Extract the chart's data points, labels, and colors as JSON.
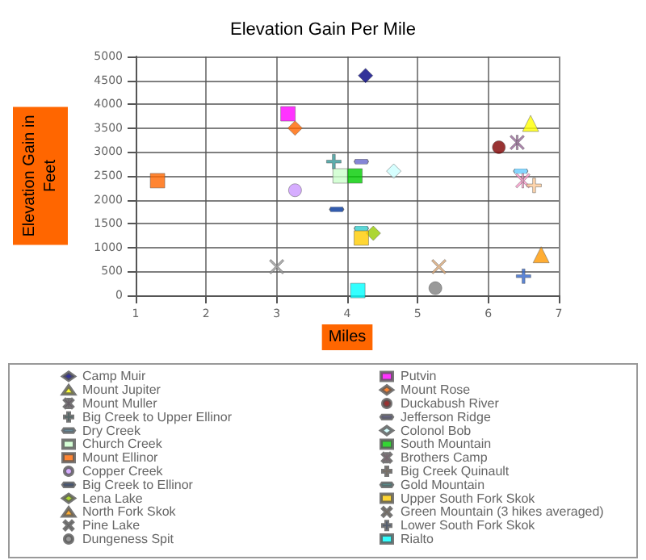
{
  "chart_data": {
    "type": "scatter",
    "title": "Elevation Gain Per Mile",
    "xlabel": "Miles",
    "ylabel": "Elevation Gain in Feet",
    "xlim": [
      1,
      7
    ],
    "xticks": [
      1,
      2,
      3,
      4,
      5,
      6,
      7
    ],
    "ylim": [
      0,
      5000
    ],
    "yticks": [
      0,
      500,
      1000,
      1500,
      2000,
      2500,
      3000,
      3500,
      4000,
      4500,
      5000
    ],
    "grid": true,
    "legend": "bottom",
    "series": [
      {
        "name": "Camp Muir",
        "color": "#000080",
        "marker": "diamond",
        "x": [
          4.26
        ],
        "values": [
          4600
        ]
      },
      {
        "name": "Mount Jupiter",
        "color": "#ffff00",
        "marker": "triangle",
        "x": [
          6.6
        ],
        "values": [
          3600
        ]
      },
      {
        "name": "Mount Muller",
        "color": "#996699",
        "marker": "star",
        "x": [
          6.41
        ],
        "values": [
          3200
        ]
      },
      {
        "name": "Big Creek to Upper Ellinor",
        "color": "#339999",
        "marker": "cross",
        "x": [
          3.81
        ],
        "values": [
          2800
        ]
      },
      {
        "name": "Dry Creek",
        "color": "#66ccff",
        "x": [
          6.46
        ],
        "values": [
          2600
        ]
      },
      {
        "name": "Church Creek",
        "color": "#ccffcc",
        "marker": "square",
        "x": [
          3.9
        ],
        "values": [
          2500
        ]
      },
      {
        "name": "Mount Ellinor",
        "color": "#ff6600",
        "marker": "square",
        "x": [
          1.31
        ],
        "values": [
          2400
        ]
      },
      {
        "name": "Copper Creek",
        "color": "#cc99ff",
        "marker": "circle",
        "x": [
          3.26
        ],
        "values": [
          2200
        ]
      },
      {
        "name": "Big Creek to Ellinor",
        "color": "#003399",
        "x": [
          3.85
        ],
        "values": [
          1800
        ]
      },
      {
        "name": "Lena Lake",
        "color": "#99cc00",
        "marker": "diamond",
        "x": [
          4.37
        ],
        "values": [
          1300
        ]
      },
      {
        "name": "North Fork Skok",
        "color": "#ff9900",
        "marker": "triangle",
        "x": [
          6.75
        ],
        "values": [
          850
        ]
      },
      {
        "name": "Pine Lake",
        "color": "#999999",
        "marker": "x",
        "x": [
          3.0
        ],
        "values": [
          600
        ]
      },
      {
        "name": "Dungeness Spit",
        "color": "#808080",
        "marker": "circle",
        "x": [
          5.25
        ],
        "values": [
          150
        ]
      },
      {
        "name": "Putvin",
        "color": "#ff00ff",
        "marker": "square",
        "x": [
          3.16
        ],
        "values": [
          3800
        ]
      },
      {
        "name": "Mount Rose",
        "color": "#ff6600",
        "marker": "diamond",
        "x": [
          3.26
        ],
        "values": [
          3500
        ]
      },
      {
        "name": "Duckabush River",
        "color": "#800000",
        "marker": "circle",
        "x": [
          6.15
        ],
        "values": [
          3100
        ]
      },
      {
        "name": "Jefferson Ridge",
        "color": "#6666cc",
        "x": [
          4.2
        ],
        "values": [
          2800
        ]
      },
      {
        "name": "Colonol Bob",
        "color": "#ccffff",
        "marker": "diamond",
        "x": [
          4.66
        ],
        "values": [
          2600
        ]
      },
      {
        "name": "South Mountain",
        "color": "#00cc00",
        "marker": "square",
        "x": [
          4.11
        ],
        "values": [
          2500
        ]
      },
      {
        "name": "Brothers Camp",
        "color": "#ff99cc",
        "marker": "star",
        "x": [
          6.49
        ],
        "values": [
          2400
        ]
      },
      {
        "name": "Big Creek Quinault",
        "color": "#ffcc99",
        "marker": "cross",
        "x": [
          6.65
        ],
        "values": [
          2300
        ]
      },
      {
        "name": "Gold Mountain",
        "color": "#33cccc",
        "x": [
          4.2
        ],
        "values": [
          1400
        ]
      },
      {
        "name": "Upper South Fork Skok",
        "color": "#ffcc00",
        "marker": "square",
        "x": [
          4.2
        ],
        "values": [
          1200
        ]
      },
      {
        "name": "Green Mountain (3 hikes averaged)",
        "color": "#d9a877",
        "marker": "x",
        "x": [
          5.3
        ],
        "values": [
          600
        ]
      },
      {
        "name": "Lower South Fork Skok",
        "color": "#3366cc",
        "marker": "cross",
        "x": [
          6.5
        ],
        "values": [
          400
        ]
      },
      {
        "name": "Rialto",
        "color": "#00ffff",
        "marker": "square",
        "x": [
          4.15
        ],
        "values": [
          100
        ]
      }
    ]
  }
}
